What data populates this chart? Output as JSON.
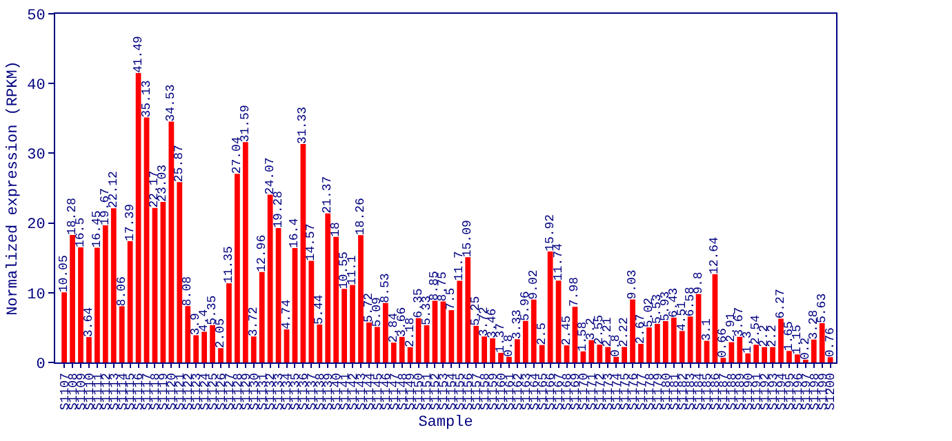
{
  "chart_data": {
    "type": "bar",
    "xlabel": "Sample",
    "ylabel": "Normalized expression (RPKM)",
    "categories": [
      "S1107",
      "S1108",
      "S1109",
      "S1110",
      "S1111",
      "S1112",
      "S1113",
      "S1114",
      "S1115",
      "S1116",
      "S1117",
      "S1118",
      "S1119",
      "S1120",
      "S1121",
      "S1122",
      "S1123",
      "S1124",
      "S1125",
      "S1126",
      "S1127",
      "S1128",
      "S1129",
      "S1130",
      "S1131",
      "S1132",
      "S1133",
      "S1134",
      "S1135",
      "S1136",
      "S1137",
      "S1138",
      "S1139",
      "S1140",
      "S1141",
      "S1142",
      "S1143",
      "S1144",
      "S1145",
      "S1146",
      "S1147",
      "S1148",
      "S1149",
      "S1150",
      "S1151",
      "S1152",
      "S1153",
      "S1154",
      "S1155",
      "S1156",
      "S1157",
      "S1158",
      "S1159",
      "S1160",
      "S1161",
      "S1162",
      "S1163",
      "S1164",
      "S1165",
      "S1166",
      "S1167",
      "S1168",
      "S1169",
      "S1170",
      "S1171",
      "S1172",
      "S1173",
      "S1174",
      "S1175",
      "S1176",
      "S1177",
      "S1178",
      "S1179",
      "S1180",
      "S1181",
      "S1182",
      "S1183",
      "S1184",
      "S1185",
      "S1186",
      "S1187",
      "S1188",
      "S1189",
      "S1190",
      "S1191",
      "S1192",
      "S1193",
      "S1194",
      "S1195",
      "S1196",
      "S1197",
      "S1198",
      "S1199",
      "S1200"
    ],
    "values": [
      10.05,
      18.28,
      16.5,
      3.64,
      16.45,
      19.67,
      22.12,
      8.06,
      17.39,
      41.49,
      35.13,
      22.17,
      23.03,
      34.53,
      25.87,
      8.08,
      3.9,
      4.4,
      5.35,
      2.05,
      11.35,
      27.04,
      31.59,
      3.72,
      12.96,
      24.07,
      19.28,
      4.74,
      16.4,
      31.33,
      14.57,
      5.44,
      21.37,
      18,
      10.55,
      11.1,
      18.26,
      5.72,
      5.09,
      8.53,
      2.84,
      3.66,
      2.18,
      6.35,
      5.33,
      8.85,
      8.75,
      7.5,
      11.7,
      15.09,
      5.25,
      3.72,
      3.46,
      1.37,
      0.8,
      3.33,
      5.96,
      9.02,
      2.5,
      15.92,
      11.74,
      2.45,
      7.98,
      1.58,
      3.2,
      2.55,
      2.21,
      0.8,
      2.22,
      9.03,
      2.67,
      5.02,
      5.53,
      5.93,
      6.43,
      4.51,
      6.58,
      9.8,
      3.1,
      12.64,
      0.66,
      2.91,
      3.67,
      1.3,
      2.54,
      2.2,
      2.2,
      6.27,
      1.65,
      1.15,
      0.2,
      3.28,
      5.63,
      0.76
    ],
    "color": "#ff0000",
    "ylim": [
      0,
      50
    ],
    "yticks": [
      0,
      10,
      20,
      30,
      40,
      50
    ],
    "data_labels": true
  }
}
